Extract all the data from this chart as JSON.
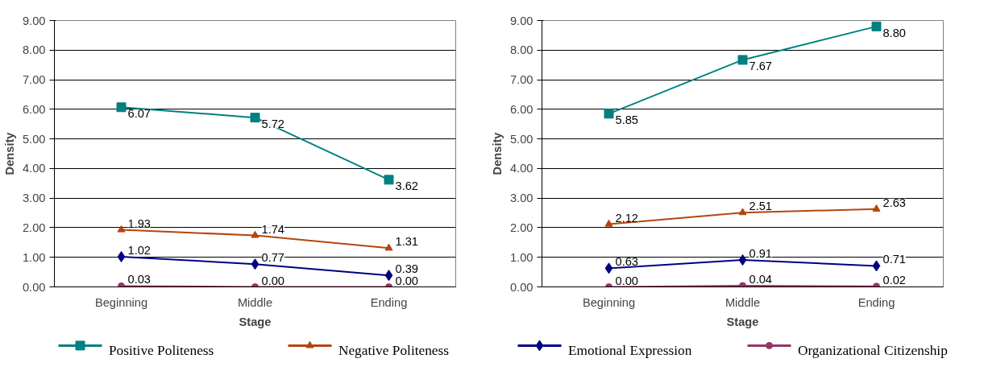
{
  "chart_data": [
    {
      "type": "line",
      "xlabel": "Stage",
      "ylabel": "Density",
      "categories": [
        "Beginning",
        "Middle",
        "Ending"
      ],
      "ylim": [
        0,
        9
      ],
      "yticks": [
        {
          "value": 0,
          "label": "0.00"
        },
        {
          "value": 1,
          "label": "1.00"
        },
        {
          "value": 2,
          "label": "2.00"
        },
        {
          "value": 3,
          "label": "3.00"
        },
        {
          "value": 4,
          "label": "4.00"
        },
        {
          "value": 5,
          "label": "5.00"
        },
        {
          "value": 6,
          "label": "6.00"
        },
        {
          "value": 7,
          "label": "7.00"
        },
        {
          "value": 8,
          "label": "8.00"
        },
        {
          "value": 9,
          "label": "9.00"
        }
      ],
      "grid": "y",
      "legend": "bottom",
      "series": [
        {
          "name": "Positive Politeness",
          "color": "#008080",
          "marker": "square",
          "values": [
            6.07,
            5.72,
            3.62
          ],
          "value_labels": [
            "6.07",
            "5.72",
            "3.62"
          ]
        },
        {
          "name": "Negative Politeness",
          "color": "#b5450f",
          "marker": "triangle",
          "values": [
            1.93,
            1.74,
            1.31
          ],
          "value_labels": [
            "1.93",
            "1.74",
            "1.31"
          ]
        },
        {
          "name": "Emotional Expression",
          "color": "#000080",
          "marker": "diamond",
          "values": [
            1.02,
            0.77,
            0.39
          ],
          "value_labels": [
            "1.02",
            "0.77",
            "0.39"
          ]
        },
        {
          "name": "Organizational Citizenship",
          "color": "#993366",
          "marker": "circle",
          "values": [
            0.03,
            0.0,
            0.0
          ],
          "value_labels": [
            "0.03",
            "0.00",
            "0.00"
          ]
        }
      ]
    },
    {
      "type": "line",
      "xlabel": "Stage",
      "ylabel": "Density",
      "categories": [
        "Beginning",
        "Middle",
        "Ending"
      ],
      "ylim": [
        0,
        9
      ],
      "yticks": [
        {
          "value": 0,
          "label": "0.00"
        },
        {
          "value": 1,
          "label": "1.00"
        },
        {
          "value": 2,
          "label": "2.00"
        },
        {
          "value": 3,
          "label": "3.00"
        },
        {
          "value": 4,
          "label": "4.00"
        },
        {
          "value": 5,
          "label": "5.00"
        },
        {
          "value": 6,
          "label": "6.00"
        },
        {
          "value": 7,
          "label": "7.00"
        },
        {
          "value": 8,
          "label": "8.00"
        },
        {
          "value": 9,
          "label": "9.00"
        }
      ],
      "grid": "y",
      "series": [
        {
          "color": "#008080",
          "marker": "square",
          "values": [
            5.85,
            7.67,
            8.8
          ],
          "value_labels": [
            "5.85",
            "7.67",
            "8.80"
          ]
        },
        {
          "color": "#b5450f",
          "marker": "triangle",
          "values": [
            2.12,
            2.51,
            2.63
          ],
          "value_labels": [
            "2.12",
            "2.51",
            "2.63"
          ]
        },
        {
          "color": "#000080",
          "marker": "diamond",
          "values": [
            0.63,
            0.91,
            0.71
          ],
          "value_labels": [
            "0.63",
            "0.91",
            "0.71"
          ]
        },
        {
          "color": "#993366",
          "marker": "circle",
          "values": [
            0.0,
            0.04,
            0.02
          ],
          "value_labels": [
            "0.00",
            "0.04",
            "0.02"
          ]
        }
      ]
    }
  ]
}
